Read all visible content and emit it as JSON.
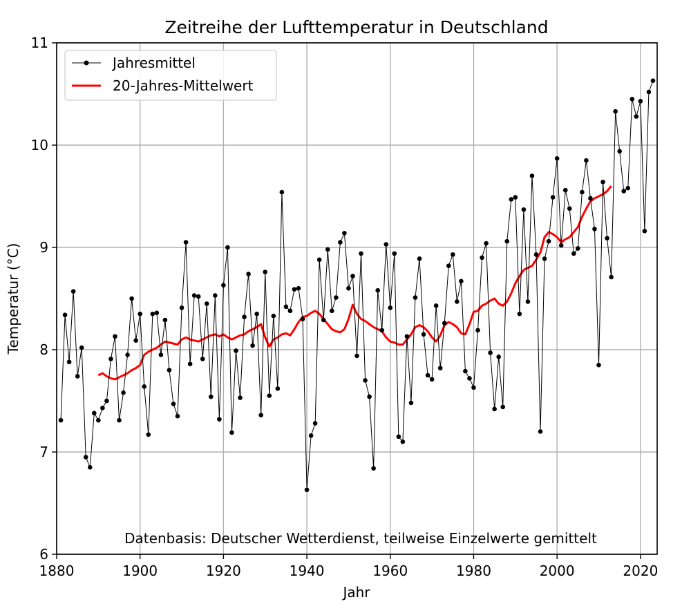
{
  "chart_data": {
    "type": "line",
    "title": "Zeitreihe der Lufttemperatur in Deutschland",
    "xlabel": "Jahr",
    "ylabel": "Temperatur (°C)",
    "xlim": [
      1880,
      2024
    ],
    "ylim": [
      6,
      11
    ],
    "xticks": [
      1880,
      1900,
      1920,
      1940,
      1960,
      1980,
      2000,
      2020
    ],
    "yticks": [
      6,
      7,
      8,
      9,
      10,
      11
    ],
    "grid": true,
    "legend_position": "top-left",
    "annotation": "Datenbasis: Deutscher Wetterdienst, teilweise Einzelwerte gemittelt",
    "series": [
      {
        "name": "Jahresmittel",
        "color": "#000000",
        "marker": "dot",
        "x": [
          1881,
          1882,
          1883,
          1884,
          1885,
          1886,
          1887,
          1888,
          1889,
          1890,
          1891,
          1892,
          1893,
          1894,
          1895,
          1896,
          1897,
          1898,
          1899,
          1900,
          1901,
          1902,
          1903,
          1904,
          1905,
          1906,
          1907,
          1908,
          1909,
          1910,
          1911,
          1912,
          1913,
          1914,
          1915,
          1916,
          1917,
          1918,
          1919,
          1920,
          1921,
          1922,
          1923,
          1924,
          1925,
          1926,
          1927,
          1928,
          1929,
          1930,
          1931,
          1932,
          1933,
          1934,
          1935,
          1936,
          1937,
          1938,
          1939,
          1940,
          1941,
          1942,
          1943,
          1944,
          1945,
          1946,
          1947,
          1948,
          1949,
          1950,
          1951,
          1952,
          1953,
          1954,
          1955,
          1956,
          1957,
          1958,
          1959,
          1960,
          1961,
          1962,
          1963,
          1964,
          1965,
          1966,
          1967,
          1968,
          1969,
          1970,
          1971,
          1972,
          1973,
          1974,
          1975,
          1976,
          1977,
          1978,
          1979,
          1980,
          1981,
          1982,
          1983,
          1984,
          1985,
          1986,
          1987,
          1988,
          1989,
          1990,
          1991,
          1992,
          1993,
          1994,
          1995,
          1996,
          1997,
          1998,
          1999,
          2000,
          2001,
          2002,
          2003,
          2004,
          2005,
          2006,
          2007,
          2008,
          2009,
          2010,
          2011,
          2012,
          2013,
          2014,
          2015,
          2016,
          2017,
          2018,
          2019,
          2020,
          2021,
          2022,
          2023
        ],
        "y": [
          7.31,
          8.34,
          7.88,
          8.57,
          7.74,
          8.02,
          6.95,
          6.85,
          7.38,
          7.31,
          7.43,
          7.5,
          7.91,
          8.13,
          7.31,
          7.58,
          7.95,
          8.5,
          8.09,
          8.35,
          7.64,
          7.17,
          8.35,
          8.36,
          7.95,
          8.29,
          7.8,
          7.47,
          7.35,
          8.41,
          9.05,
          7.86,
          8.53,
          8.52,
          7.91,
          8.45,
          7.54,
          8.53,
          7.32,
          8.63,
          9.0,
          7.19,
          7.99,
          7.53,
          8.32,
          8.74,
          8.04,
          8.35,
          7.36,
          8.76,
          7.55,
          8.33,
          7.62,
          9.54,
          8.42,
          8.38,
          8.59,
          8.6,
          8.3,
          6.63,
          7.16,
          7.28,
          8.88,
          8.29,
          8.98,
          8.38,
          8.51,
          9.05,
          9.14,
          8.6,
          8.72,
          7.94,
          8.94,
          7.7,
          7.54,
          6.84,
          8.58,
          8.19,
          9.03,
          8.41,
          8.94,
          7.15,
          7.1,
          8.13,
          7.48,
          8.51,
          8.89,
          8.15,
          7.75,
          7.71,
          8.43,
          7.82,
          8.26,
          8.82,
          8.93,
          8.47,
          8.67,
          7.79,
          7.72,
          7.63,
          8.19,
          8.9,
          9.04,
          7.97,
          7.42,
          7.93,
          7.44,
          9.06,
          9.47,
          9.49,
          8.35,
          9.37,
          8.47,
          9.7,
          8.93,
          7.2,
          8.89,
          9.06,
          9.49,
          9.87,
          9.02,
          9.56,
          9.38,
          8.94,
          8.99,
          9.54,
          9.85,
          9.48,
          9.18,
          7.85,
          9.64,
          9.09,
          8.71,
          10.33,
          9.94,
          9.55,
          9.58,
          10.45,
          10.28,
          10.43,
          9.16,
          10.52,
          10.63
        ]
      },
      {
        "name": "20-Jahres-Mittelwert",
        "color": "#ff0000",
        "marker": "none",
        "x": [
          1890,
          1891,
          1892,
          1893,
          1894,
          1895,
          1896,
          1897,
          1898,
          1899,
          1900,
          1901,
          1902,
          1903,
          1904,
          1905,
          1906,
          1907,
          1908,
          1909,
          1910,
          1911,
          1912,
          1913,
          1914,
          1915,
          1916,
          1917,
          1918,
          1919,
          1920,
          1921,
          1922,
          1923,
          1924,
          1925,
          1926,
          1927,
          1928,
          1929,
          1930,
          1931,
          1932,
          1933,
          1934,
          1935,
          1936,
          1937,
          1938,
          1939,
          1940,
          1941,
          1942,
          1943,
          1944,
          1945,
          1946,
          1947,
          1948,
          1949,
          1950,
          1951,
          1952,
          1953,
          1954,
          1955,
          1956,
          1957,
          1958,
          1959,
          1960,
          1961,
          1962,
          1963,
          1964,
          1965,
          1966,
          1967,
          1968,
          1969,
          1970,
          1971,
          1972,
          1973,
          1974,
          1975,
          1976,
          1977,
          1978,
          1979,
          1980,
          1981,
          1982,
          1983,
          1984,
          1985,
          1986,
          1987,
          1988,
          1989,
          1990,
          1991,
          1992,
          1993,
          1994,
          1995,
          1996,
          1997,
          1998,
          1999,
          2000,
          2001,
          2002,
          2003,
          2004,
          2005,
          2006,
          2007,
          2008,
          2009,
          2010,
          2011,
          2012,
          2013
        ],
        "y": [
          7.75,
          7.77,
          7.74,
          7.72,
          7.71,
          7.73,
          7.75,
          7.77,
          7.8,
          7.82,
          7.85,
          7.95,
          7.98,
          8.0,
          8.02,
          8.05,
          8.08,
          8.07,
          8.06,
          8.05,
          8.1,
          8.12,
          8.1,
          8.09,
          8.08,
          8.1,
          8.12,
          8.14,
          8.15,
          8.13,
          8.15,
          8.12,
          8.1,
          8.12,
          8.14,
          8.15,
          8.18,
          8.2,
          8.22,
          8.25,
          8.12,
          8.03,
          8.1,
          8.12,
          8.15,
          8.16,
          8.14,
          8.2,
          8.27,
          8.32,
          8.33,
          8.36,
          8.38,
          8.35,
          8.3,
          8.25,
          8.2,
          8.18,
          8.17,
          8.2,
          8.3,
          8.44,
          8.35,
          8.3,
          8.28,
          8.25,
          8.22,
          8.2,
          8.18,
          8.12,
          8.08,
          8.07,
          8.05,
          8.05,
          8.1,
          8.15,
          8.22,
          8.24,
          8.22,
          8.18,
          8.12,
          8.08,
          8.14,
          8.24,
          8.27,
          8.25,
          8.22,
          8.16,
          8.15,
          8.25,
          8.37,
          8.38,
          8.43,
          8.45,
          8.48,
          8.5,
          8.45,
          8.43,
          8.47,
          8.55,
          8.65,
          8.72,
          8.78,
          8.8,
          8.82,
          8.88,
          8.95,
          9.1,
          9.15,
          9.13,
          9.1,
          9.05,
          9.08,
          9.1,
          9.15,
          9.2,
          9.3,
          9.38,
          9.45,
          9.48,
          9.5,
          9.52,
          9.55,
          9.6
        ]
      }
    ]
  }
}
